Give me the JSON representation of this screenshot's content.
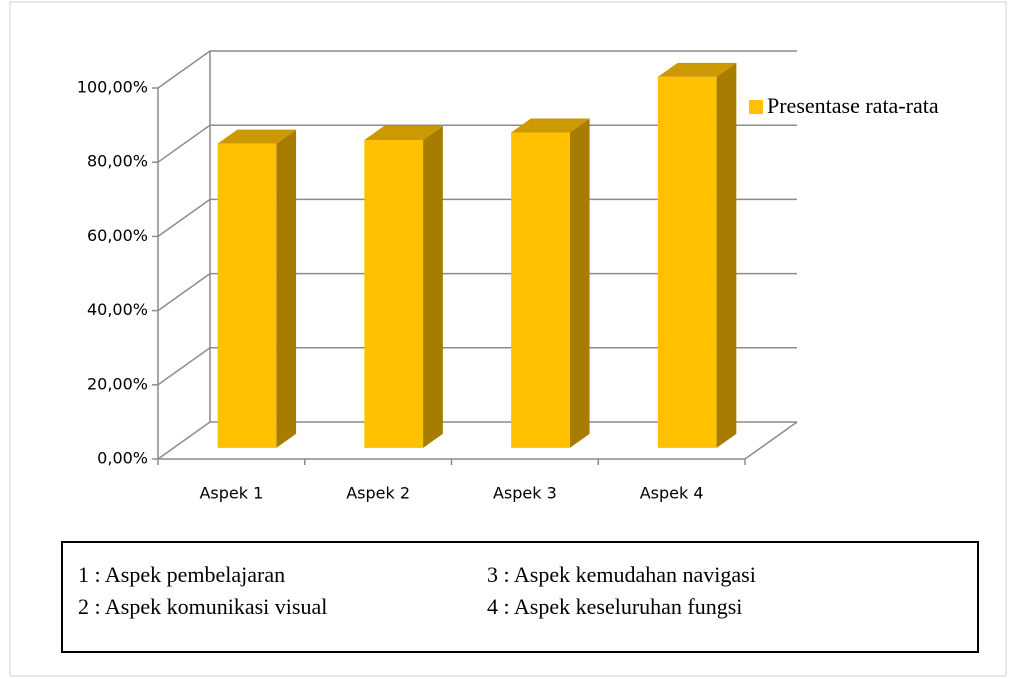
{
  "chart_data": {
    "type": "bar3d",
    "categories": [
      "Aspek 1",
      "Aspek 2",
      "Aspek 3",
      "Aspek 4"
    ],
    "series": [
      {
        "name": "Presentase rata-rata",
        "color": "#FFC000",
        "values": [
          82,
          83,
          85,
          100
        ]
      }
    ],
    "ylim": [
      0,
      100
    ],
    "yticks": [
      {
        "value": 0,
        "label": "0,00%"
      },
      {
        "value": 20,
        "label": "20,00%"
      },
      {
        "value": 40,
        "label": "40,00%"
      },
      {
        "value": 60,
        "label": "60,00%"
      },
      {
        "value": 80,
        "label": "80,00%"
      },
      {
        "value": 100,
        "label": "100,00%"
      }
    ],
    "grid": true,
    "legend": "right",
    "notes": [
      "1 : Aspek pembelajaran",
      "2 : Aspek komunikasi visual",
      "3 : Aspek kemudahan navigasi",
      "4 : Aspek keseluruhan fungsi"
    ]
  }
}
